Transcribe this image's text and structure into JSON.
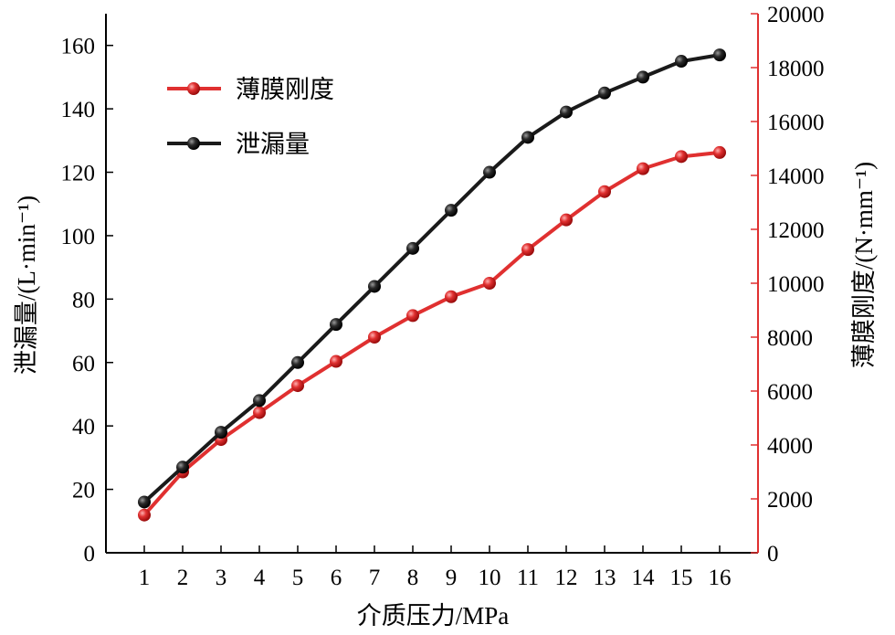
{
  "chart_data": {
    "type": "line",
    "x": [
      1,
      2,
      3,
      4,
      5,
      6,
      7,
      8,
      9,
      10,
      11,
      12,
      13,
      14,
      15,
      16
    ],
    "xlabel": "介质压力/MPa",
    "xlim": [
      0,
      17
    ],
    "xticks": [
      1,
      2,
      3,
      4,
      5,
      6,
      7,
      8,
      9,
      10,
      11,
      12,
      13,
      14,
      15,
      16
    ],
    "ylabel_left": "泄漏量/(L·min⁻¹)",
    "ylim_left": [
      0,
      170
    ],
    "yticks_left": [
      0,
      20,
      40,
      60,
      80,
      100,
      120,
      140,
      160
    ],
    "ylabel_right": "薄膜刚度/(N·mm⁻¹)",
    "ylim_right": [
      0,
      20000
    ],
    "yticks_right": [
      0,
      2000,
      4000,
      6000,
      8000,
      10000,
      12000,
      14000,
      16000,
      18000,
      20000
    ],
    "grid": false,
    "legend_position": "upper-left",
    "series": [
      {
        "name": "薄膜刚度",
        "axis": "right",
        "color": "#e03030",
        "values": [
          1400,
          3000,
          4200,
          5200,
          6200,
          7100,
          8000,
          8800,
          9500,
          10000,
          11250,
          12350,
          13400,
          14250,
          14700,
          14850
        ]
      },
      {
        "name": "泄漏量",
        "axis": "left",
        "color": "#1a1a1a",
        "values": [
          16,
          27,
          38,
          48,
          60,
          72,
          84,
          96,
          108,
          120,
          131,
          139,
          145,
          150,
          155,
          157
        ]
      }
    ]
  }
}
